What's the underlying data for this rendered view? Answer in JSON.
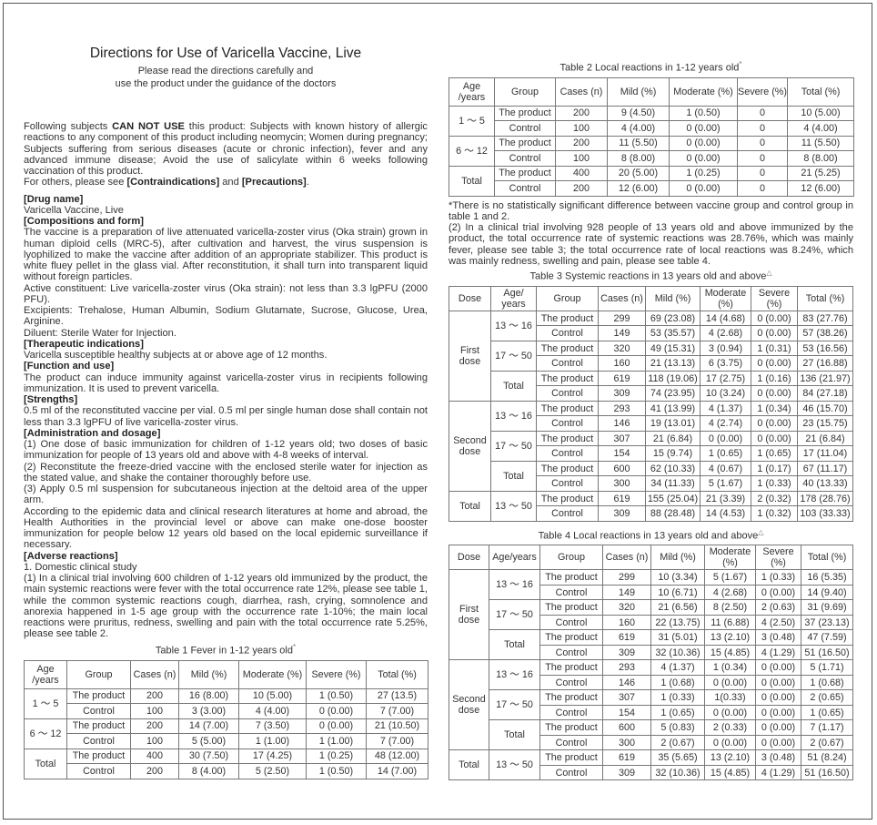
{
  "header": {
    "title": "Directions for Use of Varicella Vaccine, Live",
    "subtitle_line1": "Please read the directions carefully and",
    "subtitle_line2": "use the product under the guidance of the doctors"
  },
  "intro": {
    "p1_a": "Following subjects ",
    "p1_bold": "CAN NOT USE",
    "p1_b": " this product: Subjects with known history of allergic reactions to any component of this product including neomycin; Women during pregnancy; Subjects suffering from serious diseases (acute or chronic infection), fever and any advanced immune disease; Avoid the use of salicylate within 6 weeks following vaccination of this product.",
    "p2_a": "For others, please see ",
    "p2_bold1": "[Contraindications]",
    "p2_b": " and ",
    "p2_bold2": "[Precautions]",
    "p2_c": "."
  },
  "sections": {
    "drug_name_h": "[Drug name]",
    "drug_name": "Varicella Vaccine, Live",
    "comp_h": "[Compositions and form]",
    "comp_1": "The vaccine is a preparation of live attenuated varicella-zoster virus (Oka strain) grown in human diploid cells (MRC-5), after cultivation and harvest, the virus suspension is lyophilized to make the vaccine after addition of an appropriate stabilizer. This product is white fluey pellet in the glass vial. After reconstitution, it shall turn into transparent liquid without foreign particles.",
    "comp_2": "Active constituent: Live varicella-zoster virus (Oka strain): not less than 3.3 lgPFU (2000 PFU).",
    "comp_3": "Excipients: Trehalose, Human Albumin, Sodium Glutamate, Sucrose, Glucose, Urea, Arginine.",
    "comp_4": "Diluent: Sterile Water for Injection.",
    "ther_h": "[Therapeutic indications]",
    "ther": "Varicella susceptible healthy subjects at or above age of 12 months.",
    "func_h": "[Function and use]",
    "func": "The product can induce immunity against varicella-zoster virus in recipients following immunization. It is used to prevent varicella.",
    "str_h": "[Strengths]",
    "str": "0.5 ml of the reconstituted vaccine per vial. 0.5 ml per single human dose shall contain not less than 3.3 lgPFU of live varicella-zoster virus.",
    "adm_h": "[Administration and dosage]",
    "adm_1": "(1) One dose of basic immunization for children of 1-12 years old; two doses of basic immunization for people of 13 years old and above with 4-8 weeks of interval.",
    "adm_2": "(2) Reconstitute the freeze-dried vaccine with the enclosed sterile water for injection as the stated value, and shake the container thoroughly before use.",
    "adm_3": "(3) Apply 0.5 ml suspension for subcutaneous injection at the deltoid area of the upper arm.",
    "adm_4": "According to the epidemic data and clinical research literatures at home and abroad, the Health Authorities in the provincial level or above can make one-dose booster immunization for people below 12 years old based on the local epidemic surveillance if necessary.",
    "adv_h": "[Adverse reactions]",
    "adv_1": "1. Domestic clinical study",
    "adv_2": "(1) In a clinical trial involving 600 children of 1-12 years old immunized by the product, the main systemic reactions were fever with the total occurrence rate 12%, please see table 1, while the common systemic reactions cough, diarrhea, rash, crying, somnolence and anorexia happened in 1-5 age group with the occurrence rate 1-10%; the main local reactions were pruritus, redness, swelling and pain with the total occurrence rate 5.25%, please see table 2."
  },
  "notes": {
    "star_note": "*There is no statistically significant difference between vaccine group and control group in table 1 and 2.",
    "trial2": "(2) In a clinical trial involving 928 people of 13 years old and above immunized by the product, the total occurrence rate of systemic reactions was 28.76%, which was mainly fever, please see table 3; the total occurrence rate of local reactions was 8.24%, which was mainly redness, swelling and pain, please see table 4."
  },
  "tables": {
    "t1": {
      "caption": "Table 1 Fever in 1-12 years old",
      "mark": "*",
      "headers": [
        "Age /years",
        "Group",
        "Cases (n)",
        "Mild (%)",
        "Moderate (%)",
        "Severe (%)",
        "Total (%)"
      ],
      "groups": [
        {
          "age": "1 ～ 5",
          "rows": [
            [
              "The product",
              "200",
              "16 (8.00)",
              "10 (5.00)",
              "1 (0.50)",
              "27 (13.5)"
            ],
            [
              "Control",
              "100",
              "3 (3.00)",
              "4 (4.00)",
              "0 (0.00)",
              "7 (7.00)"
            ]
          ]
        },
        {
          "age": "6 ～ 12",
          "rows": [
            [
              "The product",
              "200",
              "14 (7.00)",
              "7 (3.50)",
              "0 (0.00)",
              "21 (10.50)"
            ],
            [
              "Control",
              "100",
              "5 (5.00)",
              "1 (1.00)",
              "1 (1.00)",
              "7 (7.00)"
            ]
          ]
        },
        {
          "age": "Total",
          "rows": [
            [
              "The product",
              "400",
              "30 (7.50)",
              "17 (4.25)",
              "1 (0.25)",
              "48 (12.00)"
            ],
            [
              "Control",
              "200",
              "8 (4.00)",
              "5 (2.50)",
              "1 (0.50)",
              "14 (7.00)"
            ]
          ]
        }
      ]
    },
    "t2": {
      "caption": "Table 2 Local reactions in 1-12 years old",
      "mark": "*",
      "headers": [
        "Age /years",
        "Group",
        "Cases (n)",
        "Mild (%)",
        "Moderate (%)",
        "Severe (%)",
        "Total (%)"
      ],
      "groups": [
        {
          "age": "1 ～ 5",
          "rows": [
            [
              "The product",
              "200",
              "9 (4.50)",
              "1 (0.50)",
              "0",
              "10 (5.00)"
            ],
            [
              "Control",
              "100",
              "4 (4.00)",
              "0 (0.00)",
              "0",
              "4 (4.00)"
            ]
          ]
        },
        {
          "age": "6 ～ 12",
          "rows": [
            [
              "The product",
              "200",
              "11 (5.50)",
              "0 (0.00)",
              "0",
              "11 (5.50)"
            ],
            [
              "Control",
              "100",
              "8 (8.00)",
              "0 (0.00)",
              "0",
              "8 (8.00)"
            ]
          ]
        },
        {
          "age": "Total",
          "rows": [
            [
              "The product",
              "400",
              "20 (5.00)",
              "1 (0.25)",
              "0",
              "21 (5.25)"
            ],
            [
              "Control",
              "200",
              "12 (6.00)",
              "0 (0.00)",
              "0",
              "12 (6.00)"
            ]
          ]
        }
      ]
    },
    "t3": {
      "caption": "Table 3 Systemic reactions in 13 years old and above",
      "mark": "△",
      "headers": [
        "Dose",
        "Age/ years",
        "Group",
        "Cases (n)",
        "Mild (%)",
        "Moderate (%)",
        "Severe (%)",
        "Total (%)"
      ],
      "doses": [
        {
          "dose": "First dose",
          "ages": [
            {
              "age": "13 ～ 16",
              "rows": [
                [
                  "The product",
                  "299",
                  "69 (23.08)",
                  "14 (4.68)",
                  "0 (0.00)",
                  "83 (27.76)"
                ],
                [
                  "Control",
                  "149",
                  "53 (35.57)",
                  "4 (2.68)",
                  "0 (0.00)",
                  "57 (38.26)"
                ]
              ]
            },
            {
              "age": "17 ～ 50",
              "rows": [
                [
                  "The product",
                  "320",
                  "49 (15.31)",
                  "3 (0.94)",
                  "1 (0.31)",
                  "53 (16.56)"
                ],
                [
                  "Control",
                  "160",
                  "21 (13.13)",
                  "6 (3.75)",
                  "0 (0.00)",
                  "27 (16.88)"
                ]
              ]
            },
            {
              "age": "Total",
              "rows": [
                [
                  "The product",
                  "619",
                  "118 (19.06)",
                  "17 (2.75)",
                  "1 (0.16)",
                  "136 (21.97)"
                ],
                [
                  "Control",
                  "309",
                  "74 (23.95)",
                  "10 (3.24)",
                  "0 (0.00)",
                  "84 (27.18)"
                ]
              ]
            }
          ]
        },
        {
          "dose": "Second dose",
          "ages": [
            {
              "age": "13 ～ 16",
              "rows": [
                [
                  "The product",
                  "293",
                  "41 (13.99)",
                  "4 (1.37)",
                  "1 (0.34)",
                  "46 (15.70)"
                ],
                [
                  "Control",
                  "146",
                  "19 (13.01)",
                  "4 (2.74)",
                  "0 (0.00)",
                  "23 (15.75)"
                ]
              ]
            },
            {
              "age": "17 ～ 50",
              "rows": [
                [
                  "The product",
                  "307",
                  "21 (6.84)",
                  "0 (0.00)",
                  "0 (0.00)",
                  "21 (6.84)"
                ],
                [
                  "Control",
                  "154",
                  "15 (9.74)",
                  "1 (0.65)",
                  "1 (0.65)",
                  "17 (11.04)"
                ]
              ]
            },
            {
              "age": "Total",
              "rows": [
                [
                  "The product",
                  "600",
                  "62 (10.33)",
                  "4 (0.67)",
                  "1 (0.17)",
                  "67 (11.17)"
                ],
                [
                  "Control",
                  "300",
                  "34 (11.33)",
                  "5 (1.67)",
                  "1 (0.33)",
                  "40 (13.33)"
                ]
              ]
            }
          ]
        },
        {
          "dose": "Total",
          "ages": [
            {
              "age": "13 ～ 50",
              "rows": [
                [
                  "The product",
                  "619",
                  "155 (25.04)",
                  "21 (3.39)",
                  "2 (0.32)",
                  "178 (28.76)"
                ],
                [
                  "Control",
                  "309",
                  "88 (28.48)",
                  "14 (4.53)",
                  "1 (0.32)",
                  "103 (33.33)"
                ]
              ]
            }
          ]
        }
      ]
    },
    "t4": {
      "caption": "Table 4 Local reactions in 13 years old and above",
      "mark": "△",
      "headers": [
        "Dose",
        "Age/years",
        "Group",
        "Cases (n)",
        "Mild (%)",
        "Moderate (%)",
        "Severe (%)",
        "Total (%)"
      ],
      "doses": [
        {
          "dose": "First dose",
          "ages": [
            {
              "age": "13 ～ 16",
              "rows": [
                [
                  "The product",
                  "299",
                  "10 (3.34)",
                  "5 (1.67)",
                  "1 (0.33)",
                  "16 (5.35)"
                ],
                [
                  "Control",
                  "149",
                  "10 (6.71)",
                  "4 (2.68)",
                  "0 (0.00)",
                  "14 (9.40)"
                ]
              ]
            },
            {
              "age": "17 ～ 50",
              "rows": [
                [
                  "The product",
                  "320",
                  "21 (6.56)",
                  "8 (2.50)",
                  "2 (0.63)",
                  "31 (9.69)"
                ],
                [
                  "Control",
                  "160",
                  "22 (13.75)",
                  "11 (6.88)",
                  "4 (2.50)",
                  "37 (23.13)"
                ]
              ]
            },
            {
              "age": "Total",
              "rows": [
                [
                  "The product",
                  "619",
                  "31 (5.01)",
                  "13 (2.10)",
                  "3 (0.48)",
                  "47 (7.59)"
                ],
                [
                  "Control",
                  "309",
                  "32 (10.36)",
                  "15 (4.85)",
                  "4 (1.29)",
                  "51 (16.50)"
                ]
              ]
            }
          ]
        },
        {
          "dose": "Second dose",
          "ages": [
            {
              "age": "13 ～ 16",
              "rows": [
                [
                  "The product",
                  "293",
                  "4 (1.37)",
                  "1 (0.34)",
                  "0 (0.00)",
                  "5 (1.71)"
                ],
                [
                  "Control",
                  "146",
                  "1 (0.68)",
                  "0 (0.00)",
                  "0 (0.00)",
                  "1 (0.68)"
                ]
              ]
            },
            {
              "age": "17 ～ 50",
              "rows": [
                [
                  "The product",
                  "307",
                  "1 (0.33)",
                  "1(0.33)",
                  "0 (0.00)",
                  "2 (0.65)"
                ],
                [
                  "Control",
                  "154",
                  "1 (0.65)",
                  "0 (0.00)",
                  "0 (0.00)",
                  "1 (0.65)"
                ]
              ]
            },
            {
              "age": "Total",
              "rows": [
                [
                  "The product",
                  "600",
                  "5 (0.83)",
                  "2 (0.33)",
                  "0 (0.00)",
                  "7 (1.17)"
                ],
                [
                  "Control",
                  "300",
                  "2 (0.67)",
                  "0 (0.00)",
                  "0 (0.00)",
                  "2 (0.67)"
                ]
              ]
            }
          ]
        },
        {
          "dose": "Total",
          "ages": [
            {
              "age": "13 ～ 50",
              "rows": [
                [
                  "The product",
                  "619",
                  "35 (5.65)",
                  "13 (2.10)",
                  "3 (0.48)",
                  "51 (8.24)"
                ],
                [
                  "Control",
                  "309",
                  "32 (10.36)",
                  "15 (4.85)",
                  "4 (1.29)",
                  "51 (16.50)"
                ]
              ]
            }
          ]
        }
      ]
    }
  }
}
